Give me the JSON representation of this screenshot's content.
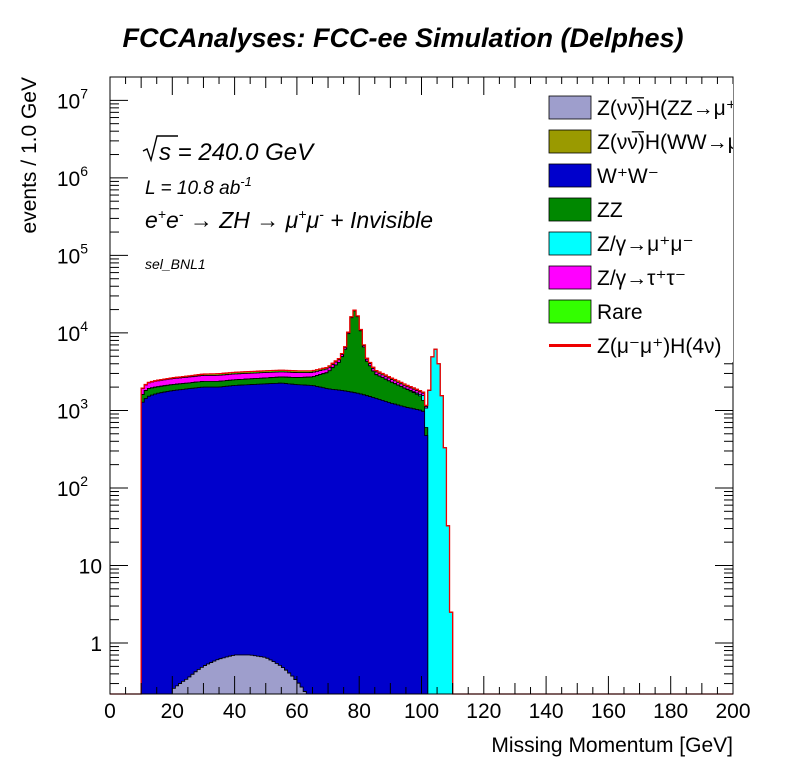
{
  "chart_data": {
    "type": "area",
    "title": "FCCAnalyses: FCC-ee Simulation (Delphes)",
    "xlabel": "Missing Momentum [GeV]",
    "ylabel": "events / 1.0 GeV",
    "xlim": [
      0,
      200
    ],
    "ylim": [
      0.22,
      20000000
    ],
    "log_y": true,
    "stacked": true,
    "legend_position": "top-right",
    "x_ticks": [
      "0",
      "20",
      "40",
      "60",
      "80",
      "100",
      "120",
      "140",
      "160",
      "180",
      "200"
    ],
    "y_ticks": [
      {
        "value": 1,
        "label": "1"
      },
      {
        "value": 10,
        "label": "10"
      },
      {
        "value": 100,
        "label": "10^2"
      },
      {
        "value": 1000,
        "label": "10^3"
      },
      {
        "value": 10000,
        "label": "10^4"
      },
      {
        "value": 100000,
        "label": "10^5"
      },
      {
        "value": 1000000,
        "label": "10^6"
      },
      {
        "value": 10000000,
        "label": "10^7"
      }
    ],
    "annotations": {
      "sqrt_s": "s = 240.0 GeV",
      "lumi": "L = 10.8 ab-1",
      "process": "e+e- → ZH → μ+μ- + Invisible",
      "selection": "sel_BNL1"
    },
    "series": [
      {
        "name": "Z(νν̅)H(ZZ→μ+μ-ν+ν-)",
        "legend_label": "Z(νν̅)H(ZZ→μ⁺μ⁻ν⁺",
        "color": "#9e9ecc",
        "points": [
          [
            20,
            0.25
          ],
          [
            25,
            0.35
          ],
          [
            30,
            0.5
          ],
          [
            35,
            0.62
          ],
          [
            40,
            0.7
          ],
          [
            45,
            0.7
          ],
          [
            50,
            0.65
          ],
          [
            55,
            0.5
          ],
          [
            60,
            0.32
          ],
          [
            63,
            0.22
          ]
        ]
      },
      {
        "name": "Z(νν̅)H(WW→μ+νμ-ν)",
        "legend_label": "Z(νν̅)H(WW→μ⁺νμ",
        "color": "#9a9a00",
        "points": []
      },
      {
        "name": "W+W-",
        "legend_label": "W⁺W⁻",
        "color": "#0000cc",
        "points": [
          [
            10,
            1200
          ],
          [
            12,
            1500
          ],
          [
            15,
            1650
          ],
          [
            20,
            1800
          ],
          [
            25,
            1900
          ],
          [
            30,
            2000
          ],
          [
            35,
            2000
          ],
          [
            40,
            2100
          ],
          [
            45,
            2150
          ],
          [
            50,
            2200
          ],
          [
            55,
            2250
          ],
          [
            60,
            2150
          ],
          [
            65,
            2100
          ],
          [
            70,
            1900
          ],
          [
            75,
            1800
          ],
          [
            80,
            1650
          ],
          [
            85,
            1450
          ],
          [
            90,
            1250
          ],
          [
            95,
            1100
          ],
          [
            100,
            1000
          ],
          [
            101,
            950
          ],
          [
            102,
            0
          ]
        ]
      },
      {
        "name": "ZZ",
        "legend_label": "ZZ",
        "color": "#008800",
        "points": [
          [
            10,
            300
          ],
          [
            12,
            400
          ],
          [
            15,
            350
          ],
          [
            20,
            350
          ],
          [
            25,
            350
          ],
          [
            30,
            370
          ],
          [
            35,
            370
          ],
          [
            40,
            380
          ],
          [
            45,
            400
          ],
          [
            50,
            420
          ],
          [
            55,
            450
          ],
          [
            60,
            500
          ],
          [
            65,
            600
          ],
          [
            70,
            1200
          ],
          [
            74,
            2500
          ],
          [
            76,
            5000
          ],
          [
            78,
            17000
          ],
          [
            79,
            18000
          ],
          [
            80,
            11000
          ],
          [
            82,
            3000
          ],
          [
            85,
            1500
          ],
          [
            90,
            1100
          ],
          [
            95,
            800
          ],
          [
            100,
            500
          ],
          [
            102,
            0
          ]
        ]
      },
      {
        "name": "Z/γ→μ+μ-",
        "legend_label": "Z/γ→μ⁺μ⁻",
        "color": "#00ffff",
        "points": [
          [
            10,
            8
          ],
          [
            15,
            15
          ],
          [
            20,
            5
          ],
          [
            30,
            3
          ],
          [
            40,
            1
          ],
          [
            60,
            1
          ],
          [
            80,
            1
          ],
          [
            95,
            5
          ],
          [
            100,
            80
          ],
          [
            102,
            600
          ],
          [
            103,
            3000
          ],
          [
            104,
            6800
          ],
          [
            105,
            5500
          ],
          [
            106,
            2500
          ],
          [
            107,
            600
          ],
          [
            108,
            60
          ],
          [
            109,
            5
          ],
          [
            110,
            0
          ]
        ]
      },
      {
        "name": "Z/γ→τ+τ-",
        "legend_label": "Z/γ→τ⁺τ⁻",
        "color": "#ff00ff",
        "points": [
          [
            10,
            300
          ],
          [
            15,
            380
          ],
          [
            20,
            410
          ],
          [
            25,
            430
          ],
          [
            30,
            450
          ],
          [
            35,
            460
          ],
          [
            40,
            470
          ],
          [
            45,
            460
          ],
          [
            50,
            460
          ],
          [
            55,
            440
          ],
          [
            60,
            420
          ],
          [
            65,
            380
          ],
          [
            70,
            350
          ],
          [
            75,
            320
          ],
          [
            80,
            290
          ],
          [
            85,
            250
          ],
          [
            90,
            200
          ],
          [
            95,
            150
          ],
          [
            100,
            120
          ],
          [
            101,
            100
          ],
          [
            102,
            0
          ]
        ]
      },
      {
        "name": "Rare",
        "legend_label": "Rare",
        "color": "#33ff00",
        "points": [
          [
            10,
            20
          ],
          [
            15,
            45
          ],
          [
            20,
            65
          ],
          [
            25,
            90
          ],
          [
            30,
            120
          ],
          [
            35,
            140
          ],
          [
            40,
            150
          ],
          [
            45,
            158
          ],
          [
            50,
            162
          ],
          [
            55,
            165
          ],
          [
            60,
            165
          ],
          [
            65,
            160
          ],
          [
            70,
            155
          ],
          [
            75,
            150
          ],
          [
            80,
            140
          ],
          [
            85,
            125
          ],
          [
            90,
            105
          ],
          [
            95,
            85
          ],
          [
            100,
            60
          ],
          [
            103,
            20
          ],
          [
            105,
            3
          ],
          [
            106,
            1
          ],
          [
            107,
            0
          ]
        ]
      },
      {
        "name": "Z(μ-μ+)H(4ν)",
        "legend_label": "Z(μ⁻μ⁺)H(4ν)",
        "color": "#ee0000",
        "line_only": true,
        "points": []
      }
    ]
  }
}
